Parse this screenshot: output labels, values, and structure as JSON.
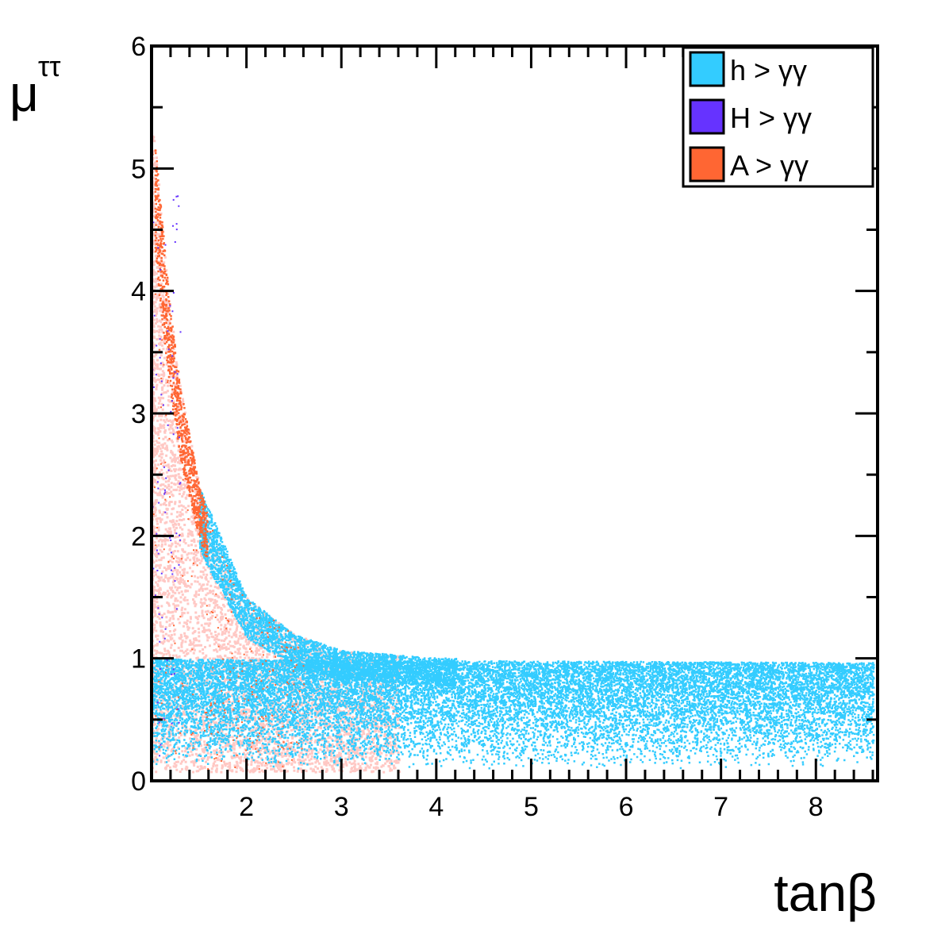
{
  "chart_data": {
    "type": "scatter",
    "xlabel": "tanβ",
    "ylabel_main": "μ",
    "ylabel_sub": "ττ",
    "xlim": [
      1.0,
      8.65
    ],
    "ylim": [
      0,
      6
    ],
    "x_ticks": [
      2,
      3,
      4,
      5,
      6,
      7,
      8
    ],
    "y_ticks": [
      0,
      1,
      2,
      3,
      4,
      5,
      6
    ],
    "grid": false,
    "legend_position": "top-right",
    "series": [
      {
        "name": "h > γγ",
        "color": "#33ccff",
        "region": "band_and_curve",
        "band_y": [
          0.1,
          1.0
        ],
        "curve_points": [
          [
            1.5,
            2.4
          ],
          [
            2.0,
            1.5
          ],
          [
            2.5,
            1.2
          ],
          [
            3.0,
            1.07
          ],
          [
            4.0,
            1.01
          ],
          [
            8.6,
            0.97
          ]
        ]
      },
      {
        "name": "H > γγ",
        "color": "#6633ff",
        "region": "sparse_low_tanb",
        "x_range": [
          1.0,
          1.3
        ]
      },
      {
        "name": "A > γγ",
        "color": "#ff6633",
        "region": "under_curve",
        "curve_points": [
          [
            1.02,
            5.3
          ],
          [
            1.1,
            4.6
          ],
          [
            1.2,
            3.8
          ],
          [
            1.3,
            3.2
          ],
          [
            1.5,
            2.4
          ],
          [
            1.7,
            1.9
          ],
          [
            2.0,
            1.5
          ],
          [
            2.5,
            1.2
          ],
          [
            3.0,
            1.07
          ],
          [
            3.5,
            1.03
          ]
        ]
      }
    ]
  }
}
